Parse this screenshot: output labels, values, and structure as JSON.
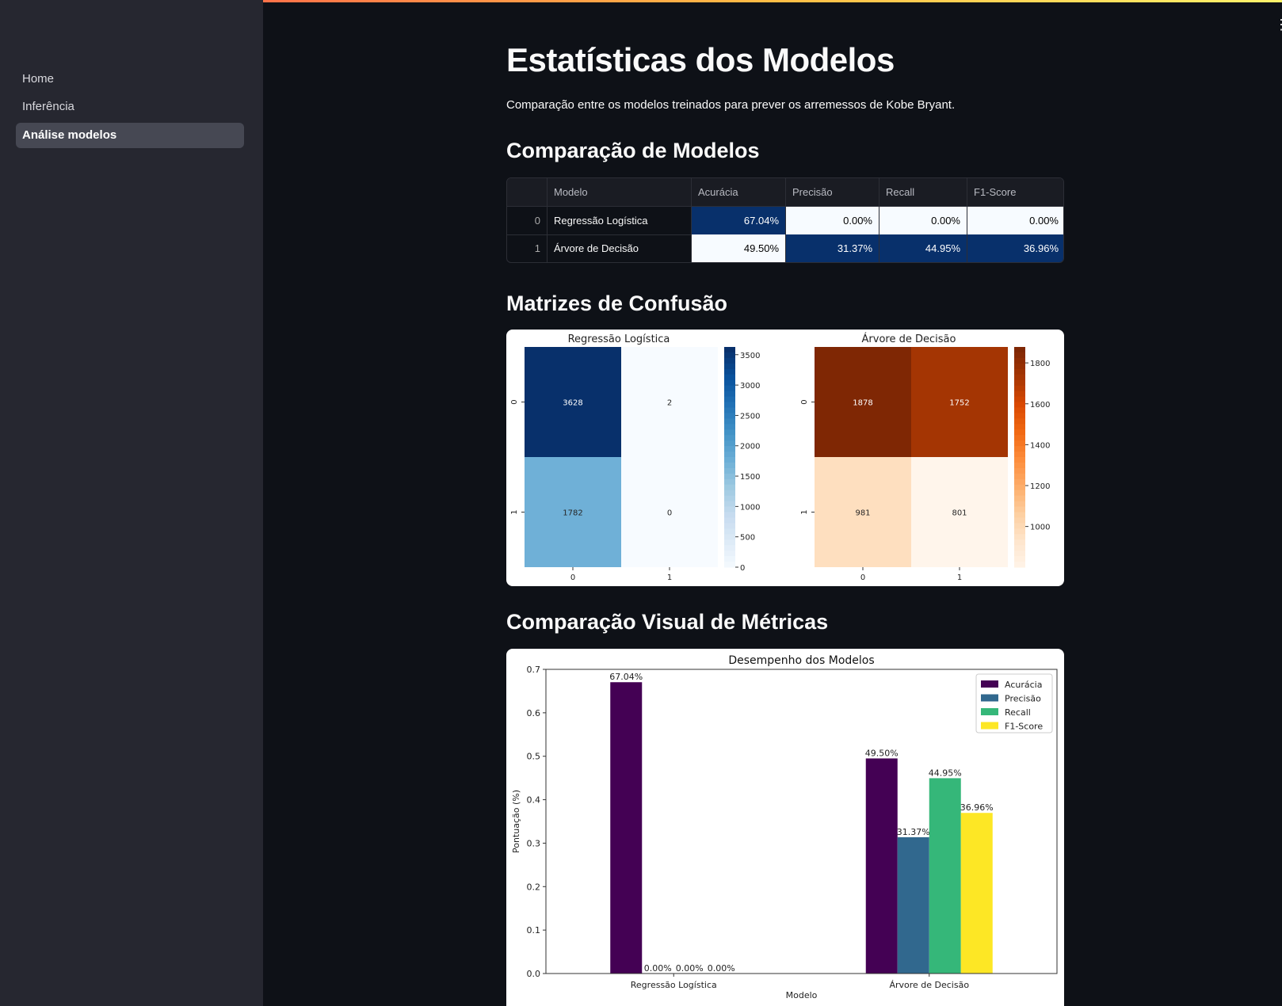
{
  "sidebar": {
    "items": [
      {
        "label": "Home",
        "active": false
      },
      {
        "label": "Inferência",
        "active": false
      },
      {
        "label": "Análise modelos",
        "active": true
      }
    ]
  },
  "page": {
    "title": "Estatísticas dos Modelos",
    "subtitle": "Comparação entre os modelos treinados para prever os arremessos de Kobe Bryant.",
    "section_table": "Comparação de Modelos",
    "section_confusion": "Matrizes de Confusão",
    "section_metrics": "Comparação Visual de Métricas"
  },
  "table": {
    "headers": [
      "",
      "Modelo",
      "Acurácia",
      "Precisão",
      "Recall",
      "F1-Score"
    ],
    "rows": [
      {
        "index": "0",
        "model": "Regressão Logística",
        "acc": "67.04%",
        "prec": "0.00%",
        "rec": "0.00%",
        "f1": "0.00%"
      },
      {
        "index": "1",
        "model": "Árvore de Decisão",
        "acc": "49.50%",
        "prec": "31.37%",
        "rec": "44.95%",
        "f1": "36.96%"
      }
    ],
    "highlight_color": "#08306b",
    "light_color": "#f7fbff"
  },
  "chart_data": [
    {
      "type": "heatmap",
      "title": "Regressão Logística",
      "matrix": [
        [
          3628,
          2
        ],
        [
          1782,
          0
        ]
      ],
      "row_labels": [
        "0",
        "1"
      ],
      "col_labels": [
        "0",
        "1"
      ],
      "colormap": "Blues",
      "colorbar_ticks": [
        0,
        500,
        1000,
        1500,
        2000,
        2500,
        3000,
        3500
      ]
    },
    {
      "type": "heatmap",
      "title": "Árvore de Decisão",
      "matrix": [
        [
          1878,
          1752
        ],
        [
          981,
          801
        ]
      ],
      "row_labels": [
        "0",
        "1"
      ],
      "col_labels": [
        "0",
        "1"
      ],
      "colormap": "Oranges",
      "colorbar_ticks": [
        1000,
        1200,
        1400,
        1600,
        1800
      ]
    },
    {
      "type": "bar",
      "title": "Desempenho dos Modelos",
      "xlabel": "Modelo",
      "ylabel": "Pontuação (%)",
      "ylim": [
        0,
        0.7
      ],
      "yticks": [
        0.0,
        0.1,
        0.2,
        0.3,
        0.4,
        0.5,
        0.6,
        0.7
      ],
      "categories": [
        "Regressão Logística",
        "Árvore de Decisão"
      ],
      "legend_position": "top-right",
      "series": [
        {
          "name": "Acurácia",
          "values": [
            0.6704,
            0.495
          ],
          "labels": [
            "67.04%",
            "49.50%"
          ],
          "color": "#440154"
        },
        {
          "name": "Precisão",
          "values": [
            0.0,
            0.3137
          ],
          "labels": [
            "0.00%",
            "31.37%"
          ],
          "color": "#31688e"
        },
        {
          "name": "Recall",
          "values": [
            0.0,
            0.4495
          ],
          "labels": [
            "0.00%",
            "44.95%"
          ],
          "color": "#35b779"
        },
        {
          "name": "F1-Score",
          "values": [
            0.0,
            0.3696
          ],
          "labels": [
            "0.00%",
            "36.96%"
          ],
          "color": "#fde725"
        }
      ]
    }
  ]
}
